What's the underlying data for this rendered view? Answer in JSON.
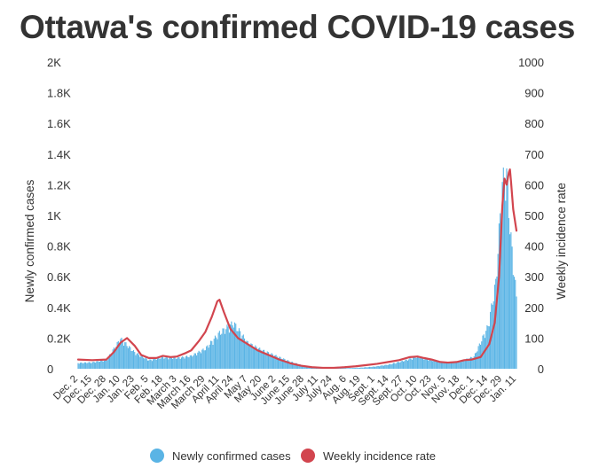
{
  "chart_data": {
    "type": "bar",
    "combo": "bar + line (dual y-axis)",
    "title": "Ottawa's confirmed COVID-19 cases",
    "xlabel": "",
    "ylabel": "Newly confirmed cases",
    "ylabel_right": "Weekly incidence rate",
    "ylim": [
      0,
      2000
    ],
    "ylim_right": [
      0,
      1000
    ],
    "yticks": [
      "0",
      "0.2K",
      "0.4K",
      "0.6K",
      "0.8K",
      "1K",
      "1.2K",
      "1.4K",
      "1.6K",
      "1.8K",
      "2K"
    ],
    "yticks_right": [
      "0",
      "100",
      "200",
      "300",
      "400",
      "500",
      "600",
      "700",
      "800",
      "900",
      "1000"
    ],
    "xticks": [
      "Dec. 2",
      "Dec. 15",
      "Dec. 28",
      "Jan. 10",
      "Jan. 23",
      "Feb. 5",
      "Feb. 18",
      "March 3",
      "March 16",
      "March 29",
      "April 11",
      "April 24",
      "May 7",
      "May 20",
      "June 2",
      "June 15",
      "June 28",
      "July 11",
      "July 24",
      "Aug. 6",
      "Aug. 19",
      "Sept. 1",
      "Sept. 14",
      "Sept. 27",
      "Oct. 10",
      "Oct. 23",
      "Nov. 5",
      "Nov. 18",
      "Dec. 1",
      "Dec. 14",
      "Dec. 29",
      "Jan. 11"
    ],
    "grid": false,
    "legend_position": "bottom",
    "series": [
      {
        "name": "Newly confirmed cases",
        "kind": "bar",
        "axis": "left",
        "color": "#5ab4e5",
        "values": [
          [
            0,
            40
          ],
          [
            13,
            45
          ],
          [
            26,
            60
          ],
          [
            39,
            210
          ],
          [
            52,
            115
          ],
          [
            65,
            60
          ],
          [
            78,
            80
          ],
          [
            91,
            75
          ],
          [
            104,
            90
          ],
          [
            117,
            140
          ],
          [
            130,
            250
          ],
          [
            143,
            320
          ],
          [
            156,
            180
          ],
          [
            169,
            130
          ],
          [
            182,
            90
          ],
          [
            195,
            50
          ],
          [
            208,
            20
          ],
          [
            221,
            10
          ],
          [
            234,
            5
          ],
          [
            247,
            4
          ],
          [
            260,
            8
          ],
          [
            273,
            15
          ],
          [
            286,
            30
          ],
          [
            299,
            55
          ],
          [
            312,
            85
          ],
          [
            325,
            60
          ],
          [
            338,
            45
          ],
          [
            351,
            50
          ],
          [
            364,
            85
          ],
          [
            377,
            300
          ],
          [
            384,
            600
          ],
          [
            390,
            1300
          ],
          [
            394,
            1350
          ],
          [
            398,
            900
          ],
          [
            403,
            500
          ]
        ]
      },
      {
        "name": "Weekly incidence rate",
        "kind": "line",
        "axis": "right",
        "color": "#d2454e",
        "values": [
          [
            0,
            30
          ],
          [
            13,
            28
          ],
          [
            26,
            30
          ],
          [
            33,
            55
          ],
          [
            39,
            85
          ],
          [
            45,
            100
          ],
          [
            52,
            75
          ],
          [
            58,
            45
          ],
          [
            65,
            35
          ],
          [
            72,
            35
          ],
          [
            78,
            42
          ],
          [
            85,
            38
          ],
          [
            91,
            40
          ],
          [
            98,
            50
          ],
          [
            104,
            60
          ],
          [
            111,
            90
          ],
          [
            117,
            120
          ],
          [
            123,
            170
          ],
          [
            128,
            220
          ],
          [
            130,
            225
          ],
          [
            134,
            185
          ],
          [
            140,
            130
          ],
          [
            147,
            100
          ],
          [
            156,
            80
          ],
          [
            165,
            60
          ],
          [
            175,
            45
          ],
          [
            185,
            30
          ],
          [
            195,
            18
          ],
          [
            205,
            10
          ],
          [
            215,
            5
          ],
          [
            225,
            3
          ],
          [
            235,
            3
          ],
          [
            245,
            5
          ],
          [
            255,
            8
          ],
          [
            265,
            12
          ],
          [
            275,
            16
          ],
          [
            285,
            22
          ],
          [
            295,
            28
          ],
          [
            305,
            38
          ],
          [
            312,
            40
          ],
          [
            318,
            35
          ],
          [
            325,
            30
          ],
          [
            333,
            22
          ],
          [
            340,
            20
          ],
          [
            348,
            22
          ],
          [
            355,
            28
          ],
          [
            362,
            30
          ],
          [
            370,
            38
          ],
          [
            378,
            80
          ],
          [
            383,
            150
          ],
          [
            387,
            300
          ],
          [
            390,
            530
          ],
          [
            392,
            620
          ],
          [
            394,
            600
          ],
          [
            396,
            640
          ],
          [
            397,
            650
          ],
          [
            398,
            610
          ],
          [
            400,
            520
          ],
          [
            403,
            450
          ]
        ]
      }
    ]
  }
}
